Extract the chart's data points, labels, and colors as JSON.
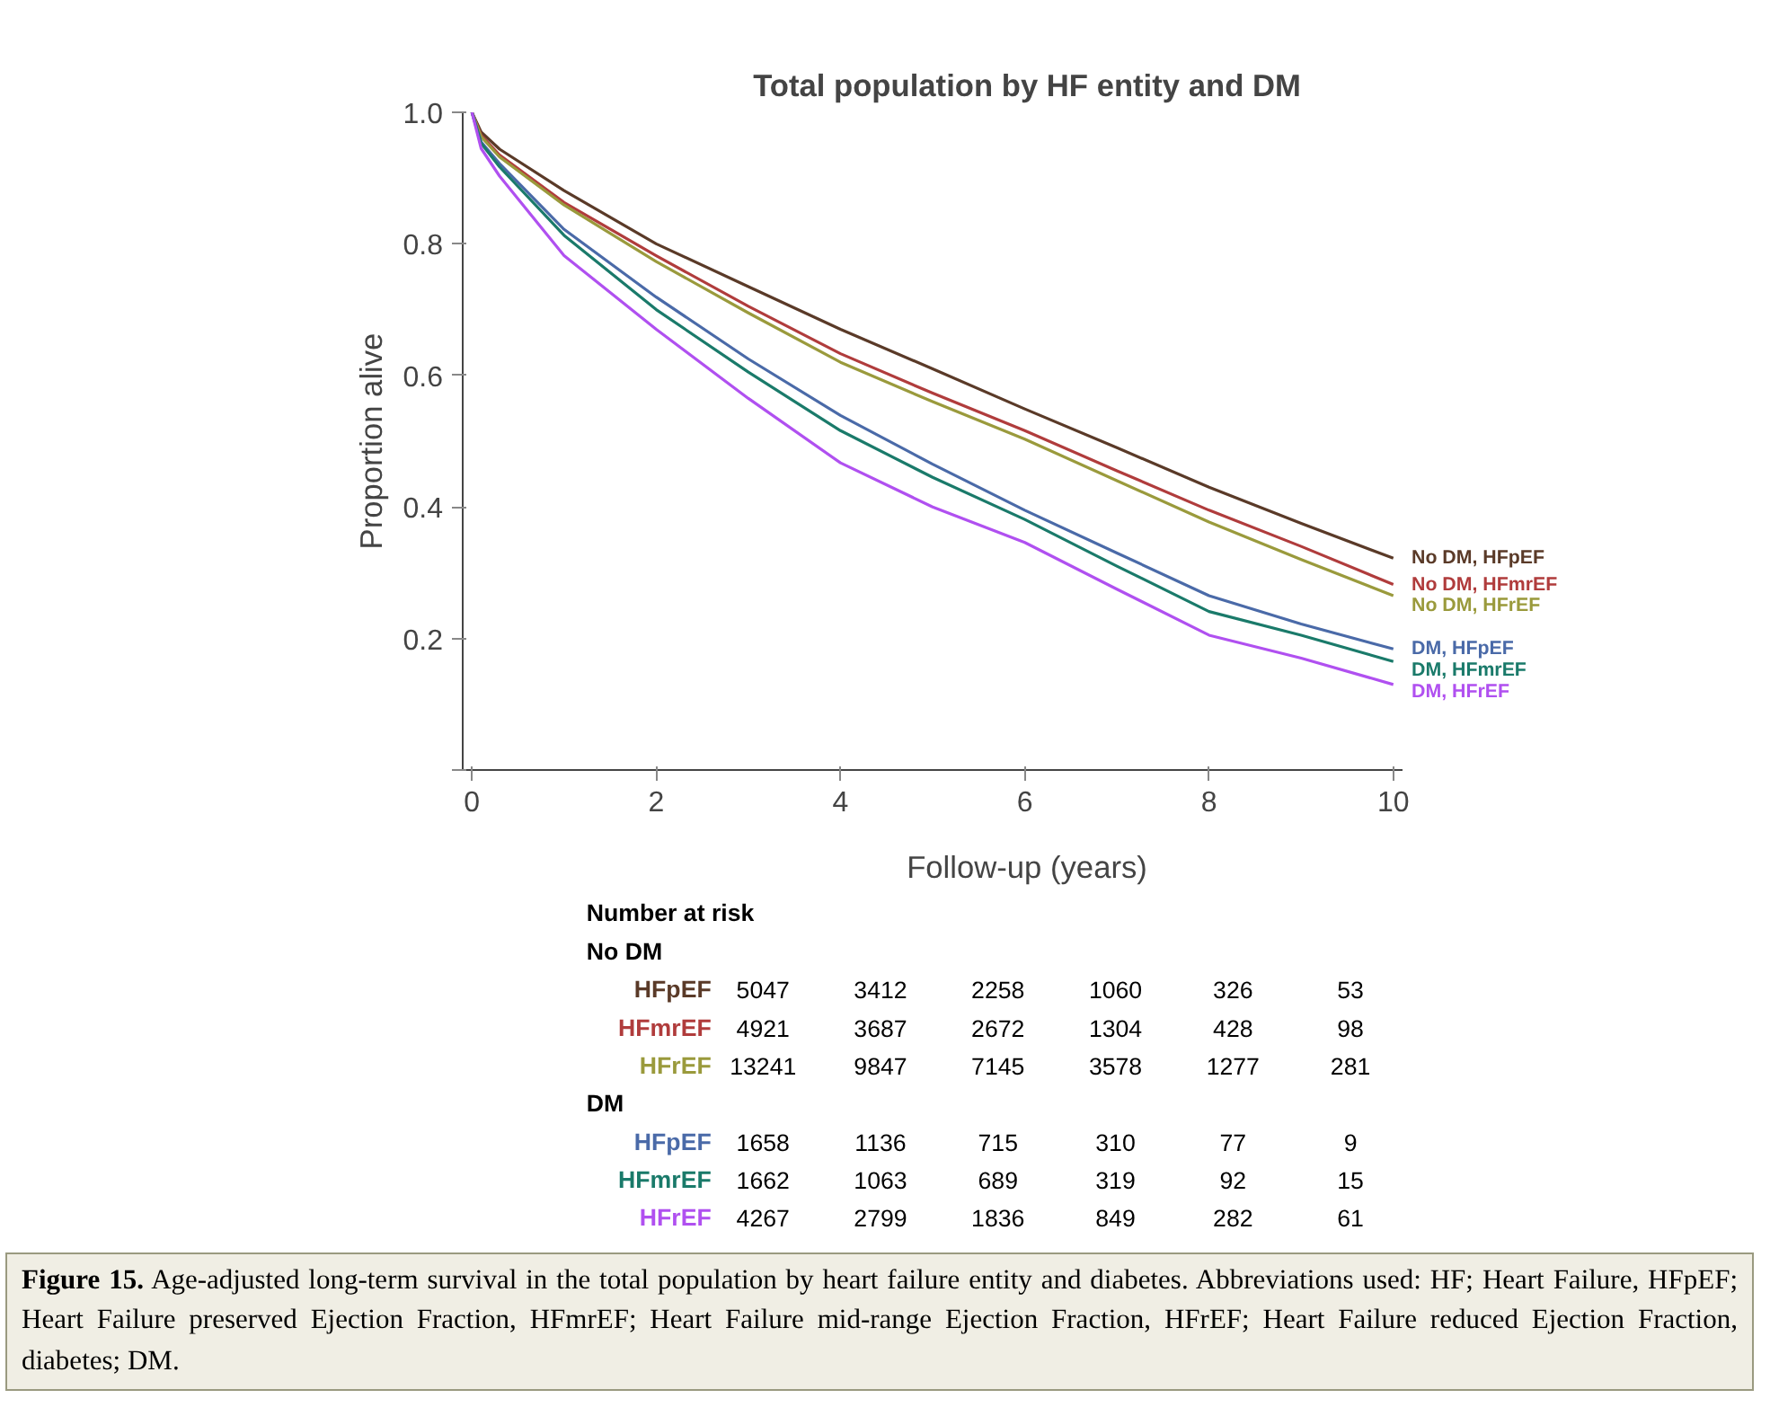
{
  "chart_data": {
    "type": "line",
    "title": "Total population by HF entity and DM",
    "xlabel": "Follow-up (years)",
    "ylabel": "Proportion alive",
    "x": [
      0,
      0.1,
      0.3,
      1,
      2,
      3,
      4,
      5,
      6,
      7,
      8,
      9,
      10
    ],
    "xlim": [
      -0.1,
      10.1
    ],
    "xticks": [
      0,
      2,
      4,
      6,
      8,
      10
    ],
    "ylim": [
      0,
      1.0
    ],
    "yticks": [
      {
        "value": 0,
        "label": null
      },
      0.2,
      0.4,
      0.6,
      0.8,
      {
        "value": 1,
        "label": "1.0"
      }
    ],
    "grid": false,
    "legend": false,
    "line_style": "solid",
    "marker": "none",
    "series": [
      {
        "name": "No DM, HFpEF",
        "color": "#5a3a28",
        "values": [
          1,
          0.97,
          0.944,
          0.881,
          0.8,
          0.735,
          0.67,
          0.61,
          0.549,
          0.49,
          0.43,
          0.375,
          0.322
        ]
      },
      {
        "name": "No DM, HFmrEF",
        "color": "#b03c3c",
        "values": [
          1,
          0.965,
          0.935,
          0.863,
          0.782,
          0.705,
          0.633,
          0.573,
          0.516,
          0.455,
          0.395,
          0.34,
          0.282
        ]
      },
      {
        "name": "No DM, HFrEF",
        "color": "#9a9a3c",
        "values": [
          1,
          0.963,
          0.932,
          0.859,
          0.773,
          0.695,
          0.62,
          0.56,
          0.503,
          0.44,
          0.377,
          0.32,
          0.265
        ]
      },
      {
        "name": "DM, HFpEF",
        "color": "#4a6aa8",
        "values": [
          1,
          0.955,
          0.922,
          0.822,
          0.719,
          0.625,
          0.539,
          0.465,
          0.395,
          0.33,
          0.265,
          0.222,
          0.184
        ]
      },
      {
        "name": "DM, HFmrEF",
        "color": "#1a7a6a",
        "values": [
          1,
          0.953,
          0.917,
          0.813,
          0.7,
          0.605,
          0.516,
          0.445,
          0.381,
          0.31,
          0.241,
          0.205,
          0.165
        ]
      },
      {
        "name": "DM, HFrEF",
        "color": "#b050f0",
        "values": [
          1,
          0.945,
          0.903,
          0.782,
          0.67,
          0.565,
          0.467,
          0.4,
          0.346,
          0.275,
          0.205,
          0.17,
          0.13
        ]
      }
    ],
    "annotations": [
      "Number at risk",
      "No DM",
      "HFpEF",
      "5047",
      "3412",
      "2258",
      "1060",
      "326",
      "53",
      "HFmrEF",
      "4921",
      "3687",
      "2672",
      "1304",
      "428",
      "98",
      "HFrEF",
      "13241",
      "9847",
      "7145",
      "3578",
      "1277",
      "281",
      "DM",
      "HFpEF",
      "1658",
      "1136",
      "715",
      "310",
      "77",
      "9",
      "HFmrEF",
      "1662",
      "1063",
      "689",
      "319",
      "92",
      "15",
      "HFrEF",
      "4267",
      "2799",
      "1836",
      "849",
      "282",
      "61",
      "Figure 15. Age-adjusted long-term survival in the total population by heart failure entity and diabetes. Abbreviations used: HF; Heart Failure, HFpEF; Heart Failure preserved Ejection Fraction, HFmrEF; Heart Failure mid-range Ejection Fraction, HFrEF; Heart Failure reduced Ejection Fraction, diabetes; DM."
    ]
  }
}
